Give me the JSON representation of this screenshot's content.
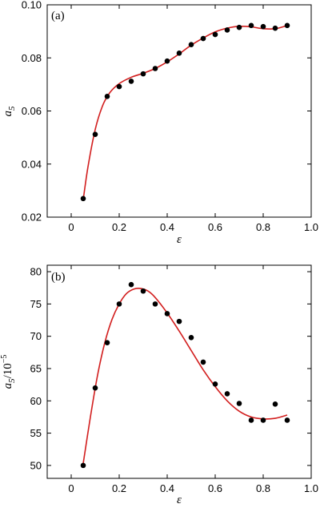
{
  "chart_data": [
    {
      "type": "scatter",
      "panel_label": "(a)",
      "xlabel": "ε",
      "ylabel_main": "a",
      "ylabel_sub": "5",
      "ylabel_sup": "",
      "ylabel_suffix": "",
      "xlim": [
        -0.1,
        1.0
      ],
      "ylim": [
        0.02,
        0.1
      ],
      "xticks": [
        0.0,
        0.2,
        0.4,
        0.6,
        0.8,
        1.0
      ],
      "xtick_labels": [
        "0",
        "0.2",
        "0.4",
        "0.6",
        "0.8",
        "1.0"
      ],
      "yticks": [
        0.02,
        0.04,
        0.06,
        0.08,
        0.1
      ],
      "ytick_labels": [
        "0.02",
        "0.04",
        "0.06",
        "0.08",
        "0.10"
      ],
      "series": [
        {
          "kind": "points",
          "x": [
            0.05,
            0.1,
            0.15,
            0.2,
            0.25,
            0.3,
            0.35,
            0.4,
            0.45,
            0.5,
            0.55,
            0.6,
            0.65,
            0.7,
            0.75,
            0.8,
            0.85,
            0.9
          ],
          "y": [
            0.027,
            0.0512,
            0.0655,
            0.0692,
            0.0712,
            0.074,
            0.076,
            0.0788,
            0.0818,
            0.085,
            0.0873,
            0.0888,
            0.0905,
            0.0915,
            0.0922,
            0.0918,
            0.0912,
            0.0922
          ]
        },
        {
          "kind": "fit",
          "color": "#d21e1e",
          "x": [
            0.05,
            0.07,
            0.1,
            0.13,
            0.16,
            0.2,
            0.25,
            0.3,
            0.35,
            0.4,
            0.45,
            0.5,
            0.55,
            0.6,
            0.65,
            0.7,
            0.75,
            0.8,
            0.85,
            0.9
          ],
          "y": [
            0.0265,
            0.039,
            0.053,
            0.0618,
            0.0668,
            0.0703,
            0.0727,
            0.0742,
            0.076,
            0.0785,
            0.0815,
            0.0848,
            0.0875,
            0.0898,
            0.0912,
            0.0919,
            0.0917,
            0.091,
            0.091,
            0.0922
          ]
        }
      ]
    },
    {
      "type": "scatter",
      "panel_label": "(b)",
      "xlabel": "ε",
      "ylabel_main": "a",
      "ylabel_sub": "5",
      "ylabel_sup": "−5",
      "ylabel_suffix": "/10",
      "xlim": [
        -0.1,
        1.0
      ],
      "ylim": [
        48,
        81
      ],
      "xticks": [
        0.0,
        0.2,
        0.4,
        0.6,
        0.8,
        1.0
      ],
      "xtick_labels": [
        "0",
        "0.2",
        "0.4",
        "0.6",
        "0.8",
        "1.0"
      ],
      "yticks": [
        50,
        55,
        60,
        65,
        70,
        75,
        80
      ],
      "ytick_labels": [
        "50",
        "55",
        "60",
        "65",
        "70",
        "75",
        "80"
      ],
      "series": [
        {
          "kind": "points",
          "x": [
            0.05,
            0.1,
            0.15,
            0.2,
            0.25,
            0.3,
            0.35,
            0.4,
            0.45,
            0.5,
            0.55,
            0.6,
            0.65,
            0.7,
            0.75,
            0.8,
            0.85,
            0.9
          ],
          "y": [
            50.0,
            62.0,
            69.0,
            75.0,
            78.0,
            77.0,
            75.0,
            73.5,
            72.3,
            69.8,
            66.0,
            62.6,
            61.1,
            59.6,
            57.0,
            57.0,
            59.5,
            57.0
          ]
        },
        {
          "kind": "fit",
          "color": "#d21e1e",
          "x": [
            0.05,
            0.08,
            0.11,
            0.14,
            0.17,
            0.2,
            0.23,
            0.26,
            0.29,
            0.32,
            0.35,
            0.4,
            0.45,
            0.5,
            0.55,
            0.6,
            0.65,
            0.7,
            0.75,
            0.8,
            0.85,
            0.9
          ],
          "y": [
            50.3,
            57.5,
            64.0,
            69.0,
            72.6,
            75.0,
            76.6,
            77.3,
            77.4,
            77.0,
            76.0,
            73.6,
            70.8,
            67.8,
            64.8,
            62.2,
            60.0,
            58.4,
            57.5,
            57.2,
            57.3,
            57.8
          ]
        }
      ]
    }
  ]
}
